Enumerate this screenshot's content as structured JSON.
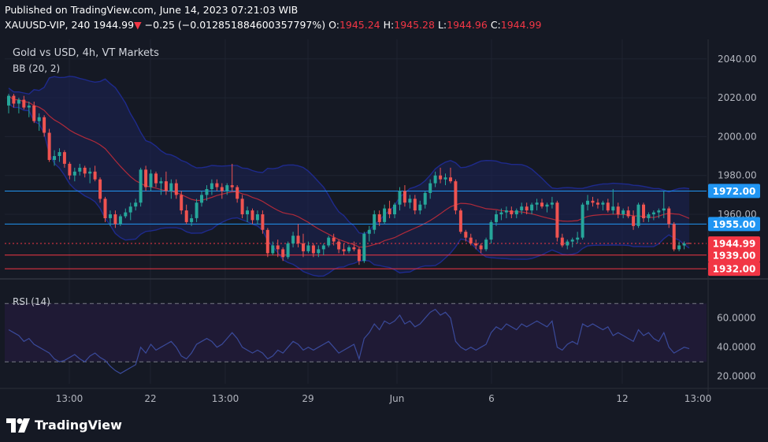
{
  "header": {
    "published": "Published on TradingView.com, June 14, 2023 07:21:03 WIB",
    "symbol": "XAUUSD-VIP, 240",
    "last": "1944.99",
    "change_arrow": "▼",
    "change": "−0.25 (−0.012851884600357797%)",
    "o_label": "O:",
    "o_value": "1945.24",
    "h_label": "H:",
    "h_value": "1945.28",
    "l_label": "L:",
    "l_value": "1944.96",
    "c_label": "C:",
    "c_value": "1944.99"
  },
  "pane": {
    "title": "Gold vs USD, 4h, VT Markets",
    "bb_label": "BB (20, 2)",
    "rsi_label": "RSI (14)"
  },
  "brand": {
    "name": "TradingView"
  },
  "colors": {
    "background": "#151924",
    "up": "#26a69a",
    "down": "#ef5350",
    "bb_band": "#1e2a8c",
    "bb_basis": "#b02a3a",
    "level_blue": "#2196f3",
    "level_red": "#f23645",
    "rsi_line": "#3a4a9a",
    "rsi_fill": "#1f1a35"
  },
  "chart_data": [
    {
      "type": "candlestick",
      "title": "Gold vs USD, 4h, VT Markets",
      "y_axis_ticks": [
        "2040.00",
        "2020.00",
        "2000.00",
        "1980.00",
        "1960.00"
      ],
      "x_axis_ticks": [
        "13:00",
        "22",
        "13:00",
        "29",
        "Jun",
        "6",
        "12",
        "13:00"
      ],
      "ylim": [
        1930,
        2046
      ],
      "price_levels": [
        {
          "label": "1972.00",
          "value": 1972.0,
          "color": "blue"
        },
        {
          "label": "1955.00",
          "value": 1955.0,
          "color": "blue"
        },
        {
          "label": "1944.99",
          "value": 1944.99,
          "color": "red",
          "style": "dotted"
        },
        {
          "label": "1939.00",
          "value": 1939.0,
          "color": "red"
        },
        {
          "label": "1932.00",
          "value": 1932.0,
          "color": "red"
        }
      ],
      "candles": [
        [
          2016,
          2022,
          2012,
          2021
        ],
        [
          2021,
          2022,
          2015,
          2017
        ],
        [
          2017,
          2020,
          2012,
          2019
        ],
        [
          2019,
          2021,
          2014,
          2015
        ],
        [
          2015,
          2018,
          2010,
          2016
        ],
        [
          2016,
          2018,
          2007,
          2008
        ],
        [
          2008,
          2012,
          2003,
          2010
        ],
        [
          2010,
          2011,
          2000,
          2002
        ],
        [
          2002,
          2004,
          1987,
          1988
        ],
        [
          1988,
          1993,
          1985,
          1990
        ],
        [
          1990,
          1994,
          1987,
          1992
        ],
        [
          1992,
          1993,
          1984,
          1986
        ],
        [
          1986,
          1987,
          1978,
          1980
        ],
        [
          1980,
          1984,
          1977,
          1982
        ],
        [
          1982,
          1986,
          1980,
          1984
        ],
        [
          1984,
          1985,
          1979,
          1981
        ],
        [
          1981,
          1984,
          1976,
          1982
        ],
        [
          1982,
          1985,
          1977,
          1978
        ],
        [
          1978,
          1979,
          1966,
          1968
        ],
        [
          1968,
          1969,
          1956,
          1958
        ],
        [
          1958,
          1962,
          1954,
          1960
        ],
        [
          1960,
          1962,
          1953,
          1955
        ],
        [
          1955,
          1960,
          1954,
          1959
        ],
        [
          1959,
          1963,
          1958,
          1961
        ],
        [
          1961,
          1966,
          1957,
          1964
        ],
        [
          1964,
          1968,
          1962,
          1966
        ],
        [
          1966,
          1984,
          1964,
          1983
        ],
        [
          1983,
          1985,
          1972,
          1974
        ],
        [
          1974,
          1983,
          1972,
          1981
        ],
        [
          1981,
          1982,
          1974,
          1976
        ],
        [
          1976,
          1979,
          1970,
          1977
        ],
        [
          1977,
          1982,
          1970,
          1972
        ],
        [
          1972,
          1978,
          1968,
          1976
        ],
        [
          1976,
          1978,
          1968,
          1970
        ],
        [
          1970,
          1972,
          1960,
          1962
        ],
        [
          1962,
          1965,
          1955,
          1956
        ],
        [
          1956,
          1960,
          1954,
          1958
        ],
        [
          1958,
          1968,
          1956,
          1966
        ],
        [
          1966,
          1972,
          1964,
          1970
        ],
        [
          1970,
          1975,
          1967,
          1973
        ],
        [
          1973,
          1978,
          1970,
          1976
        ],
        [
          1976,
          1978,
          1972,
          1974
        ],
        [
          1974,
          1976,
          1968,
          1972
        ],
        [
          1972,
          1976,
          1970,
          1975
        ],
        [
          1975,
          1986,
          1972,
          1974
        ],
        [
          1974,
          1975,
          1966,
          1968
        ],
        [
          1968,
          1970,
          1958,
          1960
        ],
        [
          1960,
          1964,
          1956,
          1962
        ],
        [
          1962,
          1963,
          1955,
          1957
        ],
        [
          1957,
          1962,
          1955,
          1960
        ],
        [
          1960,
          1962,
          1950,
          1952
        ],
        [
          1952,
          1953,
          1938,
          1940
        ],
        [
          1940,
          1946,
          1939,
          1944
        ],
        [
          1944,
          1947,
          1938,
          1942
        ],
        [
          1942,
          1943,
          1936,
          1938
        ],
        [
          1938,
          1946,
          1937,
          1945
        ],
        [
          1945,
          1951,
          1943,
          1949
        ],
        [
          1949,
          1955,
          1943,
          1945
        ],
        [
          1945,
          1950,
          1938,
          1941
        ],
        [
          1941,
          1946,
          1940,
          1944
        ],
        [
          1944,
          1945,
          1938,
          1940
        ],
        [
          1940,
          1944,
          1938,
          1942
        ],
        [
          1942,
          1945,
          1939,
          1944
        ],
        [
          1944,
          1949,
          1943,
          1948
        ],
        [
          1948,
          1950,
          1944,
          1946
        ],
        [
          1946,
          1947,
          1940,
          1942
        ],
        [
          1942,
          1945,
          1939,
          1941
        ],
        [
          1941,
          1944,
          1940,
          1943
        ],
        [
          1943,
          1946,
          1941,
          1942
        ],
        [
          1942,
          1943,
          1934,
          1936
        ],
        [
          1936,
          1951,
          1935,
          1950
        ],
        [
          1950,
          1954,
          1946,
          1952
        ],
        [
          1952,
          1962,
          1950,
          1960
        ],
        [
          1960,
          1962,
          1954,
          1956
        ],
        [
          1956,
          1965,
          1955,
          1963
        ],
        [
          1963,
          1967,
          1958,
          1960
        ],
        [
          1960,
          1966,
          1958,
          1965
        ],
        [
          1965,
          1974,
          1962,
          1972
        ],
        [
          1972,
          1975,
          1964,
          1966
        ],
        [
          1966,
          1970,
          1963,
          1968
        ],
        [
          1968,
          1970,
          1960,
          1962
        ],
        [
          1962,
          1967,
          1960,
          1965
        ],
        [
          1965,
          1972,
          1963,
          1971
        ],
        [
          1971,
          1978,
          1968,
          1976
        ],
        [
          1976,
          1982,
          1974,
          1980
        ],
        [
          1980,
          1984,
          1976,
          1978
        ],
        [
          1978,
          1981,
          1975,
          1979
        ],
        [
          1979,
          1984,
          1976,
          1977
        ],
        [
          1977,
          1978,
          1960,
          1962
        ],
        [
          1962,
          1963,
          1950,
          1951
        ],
        [
          1951,
          1952,
          1946,
          1948
        ],
        [
          1948,
          1950,
          1944,
          1945
        ],
        [
          1945,
          1947,
          1942,
          1944
        ],
        [
          1944,
          1945,
          1940,
          1942
        ],
        [
          1942,
          1948,
          1941,
          1947
        ],
        [
          1947,
          1957,
          1945,
          1956
        ],
        [
          1956,
          1962,
          1954,
          1960
        ],
        [
          1960,
          1963,
          1957,
          1961
        ],
        [
          1961,
          1964,
          1958,
          1962
        ],
        [
          1962,
          1964,
          1958,
          1960
        ],
        [
          1960,
          1963,
          1958,
          1962
        ],
        [
          1962,
          1966,
          1960,
          1964
        ],
        [
          1964,
          1966,
          1960,
          1962
        ],
        [
          1962,
          1966,
          1960,
          1965
        ],
        [
          1965,
          1968,
          1962,
          1966
        ],
        [
          1966,
          1968,
          1963,
          1964
        ],
        [
          1964,
          1966,
          1961,
          1965
        ],
        [
          1965,
          1969,
          1963,
          1966
        ],
        [
          1966,
          1967,
          1946,
          1948
        ],
        [
          1948,
          1950,
          1943,
          1944
        ],
        [
          1944,
          1947,
          1942,
          1946
        ],
        [
          1946,
          1948,
          1943,
          1947
        ],
        [
          1947,
          1951,
          1945,
          1948
        ],
        [
          1948,
          1966,
          1947,
          1965
        ],
        [
          1965,
          1970,
          1962,
          1967
        ],
        [
          1967,
          1969,
          1964,
          1966
        ],
        [
          1966,
          1968,
          1963,
          1965
        ],
        [
          1965,
          1967,
          1962,
          1966
        ],
        [
          1966,
          1968,
          1961,
          1962
        ],
        [
          1962,
          1973,
          1960,
          1964
        ],
        [
          1964,
          1966,
          1958,
          1960
        ],
        [
          1960,
          1963,
          1958,
          1962
        ],
        [
          1962,
          1964,
          1958,
          1959
        ],
        [
          1959,
          1962,
          1952,
          1954
        ],
        [
          1954,
          1966,
          1953,
          1965
        ],
        [
          1965,
          1966,
          1956,
          1958
        ],
        [
          1958,
          1961,
          1956,
          1960
        ],
        [
          1960,
          1962,
          1957,
          1961
        ],
        [
          1961,
          1963,
          1958,
          1962
        ],
        [
          1962,
          1972,
          1958,
          1963
        ],
        [
          1963,
          1964,
          1953,
          1955
        ],
        [
          1955,
          1956,
          1941,
          1942
        ],
        [
          1942,
          1946,
          1941,
          1944
        ],
        [
          1944,
          1946,
          1942,
          1945
        ],
        [
          1945.24,
          1945.28,
          1944.96,
          1944.99
        ]
      ]
    },
    {
      "type": "line",
      "title": "RSI (14)",
      "y_axis_ticks": [
        "60.0000",
        "40.0000",
        "20.0000"
      ],
      "ylim": [
        15,
        82
      ],
      "bands": [
        70,
        30
      ],
      "values": [
        52,
        50,
        48,
        44,
        46,
        42,
        40,
        38,
        36,
        32,
        30,
        31,
        33,
        35,
        32,
        30,
        34,
        36,
        33,
        31,
        27,
        24,
        22,
        24,
        26,
        28,
        40,
        36,
        42,
        38,
        40,
        42,
        44,
        40,
        34,
        32,
        36,
        42,
        44,
        46,
        44,
        40,
        42,
        46,
        50,
        46,
        40,
        38,
        36,
        38,
        36,
        32,
        34,
        38,
        36,
        40,
        44,
        42,
        38,
        40,
        38,
        40,
        42,
        44,
        40,
        36,
        38,
        40,
        42,
        32,
        46,
        50,
        56,
        52,
        58,
        56,
        58,
        62,
        56,
        58,
        54,
        56,
        60,
        64,
        66,
        62,
        64,
        60,
        44,
        40,
        38,
        40,
        38,
        40,
        42,
        50,
        54,
        52,
        56,
        54,
        52,
        56,
        54,
        56,
        58,
        56,
        54,
        58,
        40,
        38,
        42,
        44,
        42,
        56,
        54,
        56,
        54,
        52,
        54,
        48,
        50,
        48,
        46,
        44,
        52,
        48,
        50,
        46,
        44,
        50,
        40,
        36,
        38,
        40,
        39
      ]
    }
  ]
}
